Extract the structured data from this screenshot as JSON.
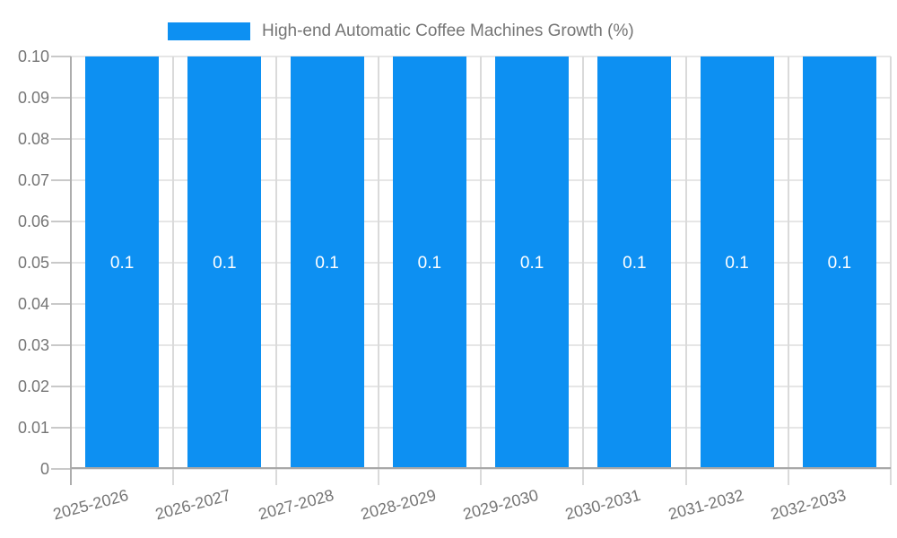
{
  "chart_data": {
    "type": "bar",
    "title": "High-end Automatic Coffee Machines Growth (%)",
    "categories": [
      "2025-2026",
      "2026-2027",
      "2027-2028",
      "2028-2029",
      "2029-2030",
      "2030-2031",
      "2031-2032",
      "2032-2033"
    ],
    "values": [
      0.1,
      0.1,
      0.1,
      0.1,
      0.1,
      0.1,
      0.1,
      0.1
    ],
    "value_labels": [
      "0.1",
      "0.1",
      "0.1",
      "0.1",
      "0.1",
      "0.1",
      "0.1",
      "0.1"
    ],
    "ylim": [
      0,
      0.1
    ],
    "ytick_step": 0.01,
    "ytick_labels": [
      "0",
      "0.01",
      "0.02",
      "0.03",
      "0.04",
      "0.05",
      "0.06",
      "0.07",
      "0.08",
      "0.09",
      "0.10"
    ],
    "xlabel": "",
    "ylabel": "",
    "grid": true,
    "legend_position": "top",
    "colors": {
      "bar": "#0d90f2",
      "bar_label": "#ffffff",
      "axis_text": "#757575",
      "gridline_h": "#e6e6e6",
      "gridline_v": "#dadada",
      "baseline": "#a8a8a8",
      "axis_line": "#adadad",
      "tick": "#c9c9c9",
      "background": "#ffffff"
    }
  }
}
